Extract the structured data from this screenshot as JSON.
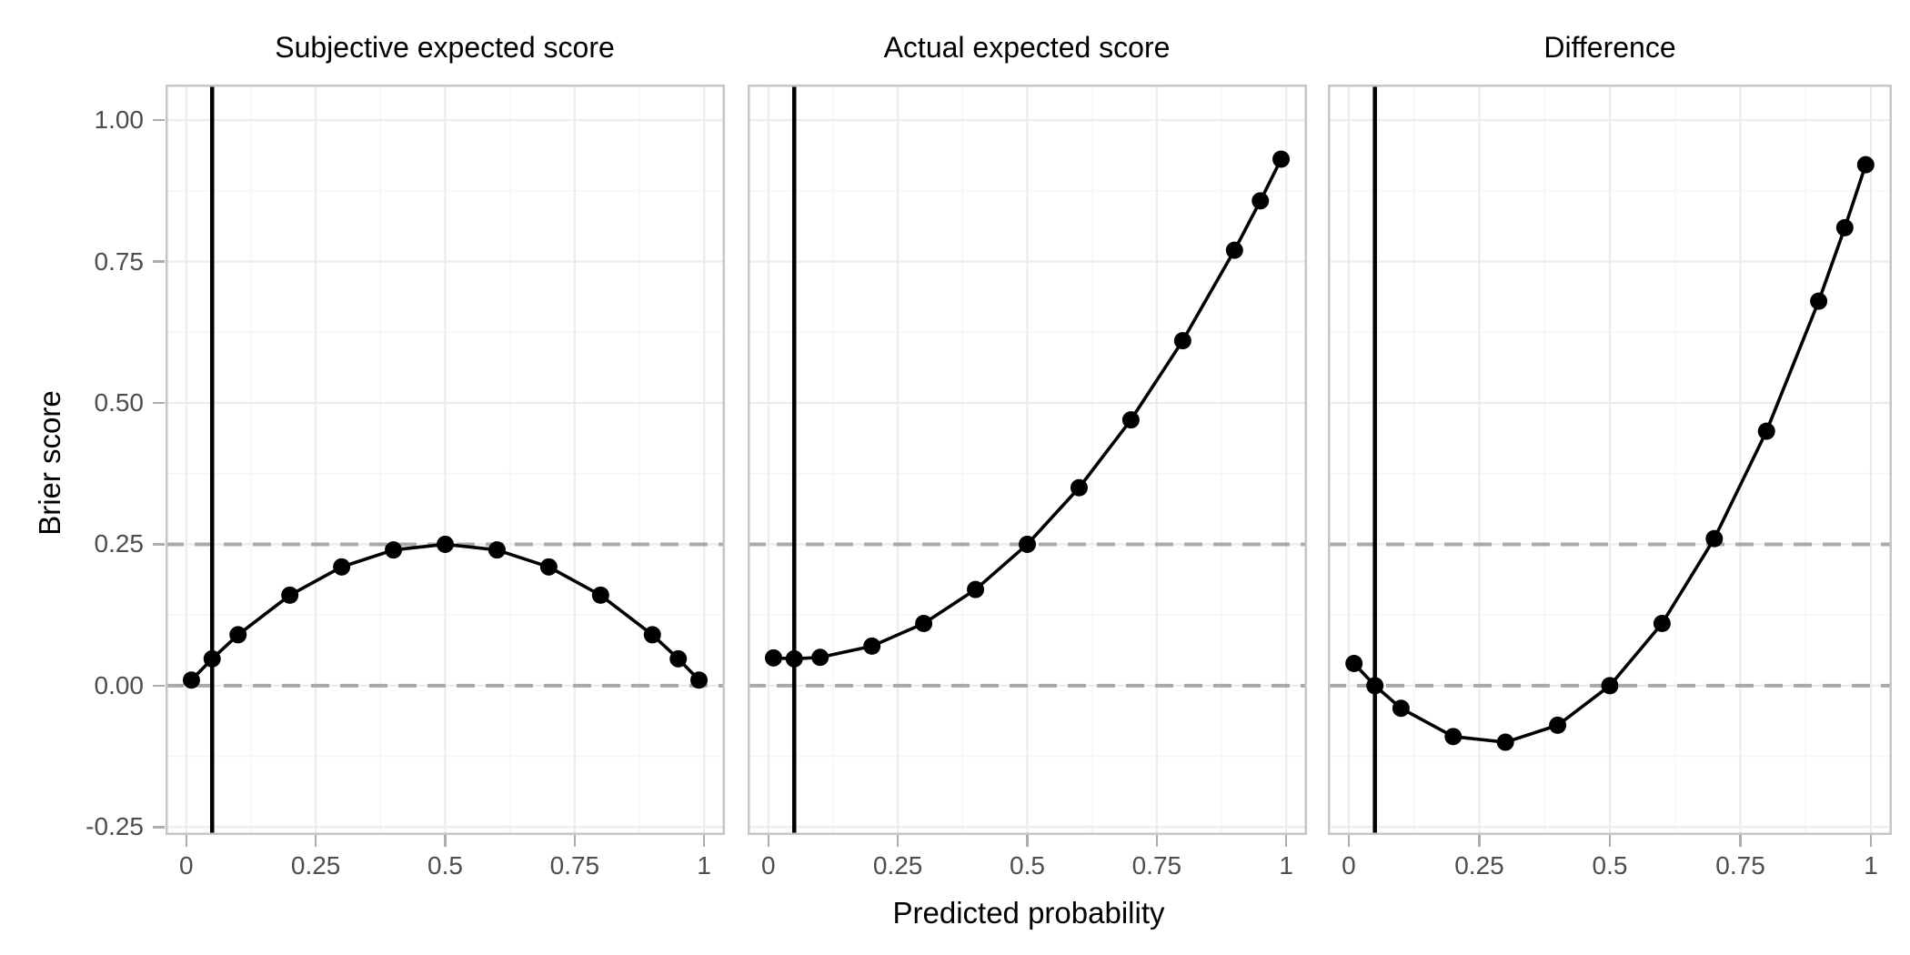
{
  "figure": {
    "y_axis_title": "Brier score",
    "x_axis_title": "Predicted probability",
    "x_tick_values": [
      0,
      0.25,
      0.5,
      0.75,
      1
    ],
    "x_tick_labels": [
      "0",
      "0.25",
      "0.5",
      "0.75",
      "1"
    ],
    "y_tick_values": [
      1.0,
      0.75,
      0.5,
      0.25,
      0.0,
      -0.25
    ],
    "y_tick_labels": [
      "1.00",
      "0.75",
      "0.50",
      "0.25",
      "0.00",
      "-0.25"
    ],
    "x_minor_gridlines": [
      0.125,
      0.375,
      0.625,
      0.875
    ],
    "y_minor_gridlines": [
      -0.125,
      0.125,
      0.375,
      0.625,
      0.875
    ],
    "colors": {
      "series": "#000000",
      "point": "#000000",
      "true_probability_line": "#000000",
      "dashed_reference_line": "#a9a9a9",
      "grid_major": "#ececec",
      "grid_minor": "#f6f6f6",
      "panel_border": "#c6c6c6",
      "tick": "#adadad",
      "axis_text": "#4d4d4d",
      "title_text": "#000000",
      "background": "#ffffff"
    }
  },
  "chart_data": [
    {
      "type": "line",
      "title": "Subjective expected score",
      "xlabel": "Predicted probability",
      "ylabel": "Brier score",
      "x": [
        0.01,
        0.05,
        0.1,
        0.2,
        0.3,
        0.4,
        0.5,
        0.6,
        0.7,
        0.8,
        0.9,
        0.95,
        0.99
      ],
      "y": [
        0.0099,
        0.0475,
        0.09,
        0.16,
        0.21,
        0.24,
        0.25,
        0.24,
        0.21,
        0.16,
        0.09,
        0.0475,
        0.0099
      ],
      "vline_x": 0.05,
      "dashed_hlines": [
        0.0,
        0.25
      ],
      "xlim": [
        -0.04,
        1.04
      ],
      "ylim": [
        -0.264,
        1.063
      ],
      "grid": true,
      "legend": "none"
    },
    {
      "type": "line",
      "title": "Actual expected score",
      "xlabel": "Predicted probability",
      "ylabel": "Brier score",
      "x": [
        0.01,
        0.05,
        0.1,
        0.2,
        0.3,
        0.4,
        0.5,
        0.6,
        0.7,
        0.8,
        0.9,
        0.95,
        0.99
      ],
      "y": [
        0.0491,
        0.0475,
        0.05,
        0.07,
        0.11,
        0.17,
        0.25,
        0.35,
        0.47,
        0.61,
        0.77,
        0.8574,
        0.9311
      ],
      "vline_x": 0.05,
      "dashed_hlines": [
        0.0,
        0.25
      ],
      "xlim": [
        -0.04,
        1.04
      ],
      "ylim": [
        -0.264,
        1.063
      ],
      "grid": true,
      "legend": "none"
    },
    {
      "type": "line",
      "title": "Difference",
      "xlabel": "Predicted probability",
      "ylabel": "Brier score",
      "x": [
        0.01,
        0.05,
        0.1,
        0.2,
        0.3,
        0.4,
        0.5,
        0.6,
        0.7,
        0.8,
        0.9,
        0.95,
        0.99
      ],
      "y": [
        0.0392,
        0.0,
        -0.04,
        -0.09,
        -0.1,
        -0.07,
        0.0,
        0.11,
        0.26,
        0.45,
        0.68,
        0.8099,
        0.9212
      ],
      "vline_x": 0.05,
      "dashed_hlines": [
        0.0,
        0.25
      ],
      "xlim": [
        -0.04,
        1.04
      ],
      "ylim": [
        -0.264,
        1.063
      ],
      "grid": true,
      "legend": "none"
    }
  ]
}
